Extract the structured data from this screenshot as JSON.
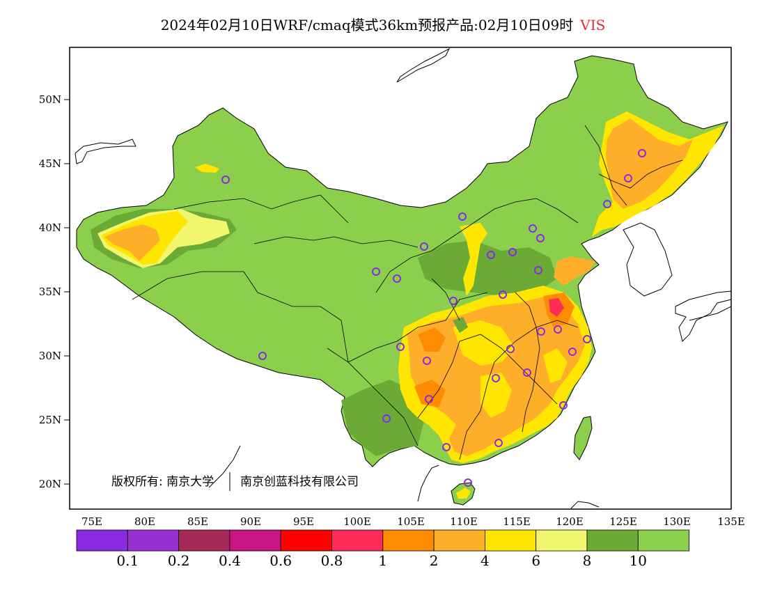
{
  "title": {
    "main": "2024年02月10日WRF/cmaq模式36km预报产品:02月10日09时",
    "variable": "VIS"
  },
  "axes": {
    "lon_labels": [
      "75E",
      "80E",
      "85E",
      "90E",
      "95E",
      "100E",
      "105E",
      "110E",
      "115E",
      "120E",
      "125E",
      "130E",
      "135E"
    ],
    "lat_labels": [
      "20N",
      "25N",
      "30N",
      "35N",
      "40N",
      "45N",
      "50N"
    ]
  },
  "copyright": {
    "label": "版权所有: 南京大学",
    "company": "南京创蓝科技有限公司"
  },
  "colorbar": {
    "colors": [
      "#8a2be2",
      "#9b30d0",
      "#a52a5a",
      "#c71585",
      "#ff0000",
      "#ff2a55",
      "#ff8c00",
      "#ffae2a",
      "#ffe600",
      "#f2f56e",
      "#6aaa35",
      "#8ccf4d"
    ],
    "labels": [
      "0.1",
      "0.2",
      "0.4",
      "0.6",
      "0.8",
      "1",
      "2",
      "4",
      "6",
      "8",
      "10"
    ]
  },
  "map_colors": {
    "land_base": "#8ccf4d",
    "dark_green": "#6aaa35",
    "light_yellow": "#f2f56e",
    "yellow": "#ffe600",
    "light_orange": "#ffae2a",
    "orange": "#ff8c00",
    "red": "#ff2a55",
    "station": "#8a2be2"
  }
}
